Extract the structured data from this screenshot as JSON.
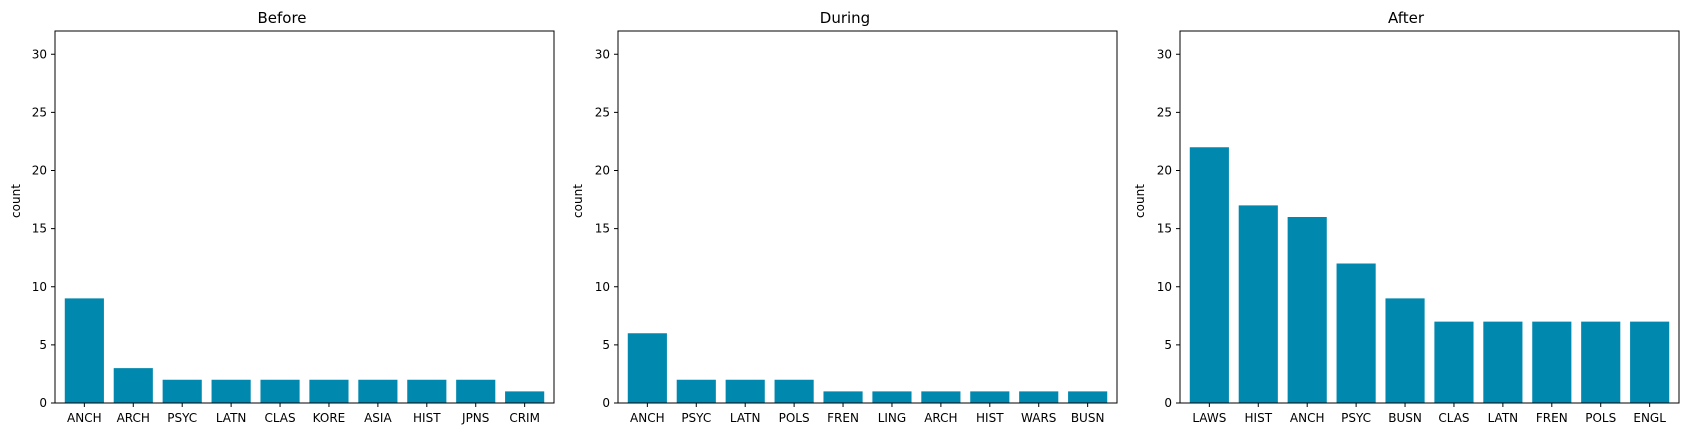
{
  "chart_data": [
    {
      "type": "bar",
      "title": "Before",
      "xlabel": "",
      "ylabel": "count",
      "ylim": [
        0,
        32
      ],
      "yticks": [
        0,
        5,
        10,
        15,
        20,
        25,
        30
      ],
      "categories": [
        "ANCH",
        "ARCH",
        "PSYC",
        "LATN",
        "CLAS",
        "KORE",
        "ASIA",
        "HIST",
        "JPNS",
        "CRIM"
      ],
      "values": [
        9,
        3,
        2,
        2,
        2,
        2,
        2,
        2,
        2,
        1
      ],
      "color": "#0088AE",
      "grid": false
    },
    {
      "type": "bar",
      "title": "During",
      "xlabel": "",
      "ylabel": "count",
      "ylim": [
        0,
        32
      ],
      "yticks": [
        0,
        5,
        10,
        15,
        20,
        25,
        30
      ],
      "categories": [
        "ANCH",
        "PSYC",
        "LATN",
        "POLS",
        "FREN",
        "LING",
        "ARCH",
        "HIST",
        "WARS",
        "BUSN"
      ],
      "values": [
        6,
        2,
        2,
        2,
        1,
        1,
        1,
        1,
        1,
        1
      ],
      "color": "#0088AE",
      "grid": false
    },
    {
      "type": "bar",
      "title": "After",
      "xlabel": "",
      "ylabel": "count",
      "ylim": [
        0,
        32
      ],
      "yticks": [
        0,
        5,
        10,
        15,
        20,
        25,
        30
      ],
      "categories": [
        "LAWS",
        "HIST",
        "ANCH",
        "PSYC",
        "BUSN",
        "CLAS",
        "LATN",
        "FREN",
        "POLS",
        "ENGL"
      ],
      "values": [
        22,
        17,
        16,
        12,
        9,
        7,
        7,
        7,
        7,
        7
      ],
      "color": "#0088AE",
      "grid": false
    }
  ]
}
